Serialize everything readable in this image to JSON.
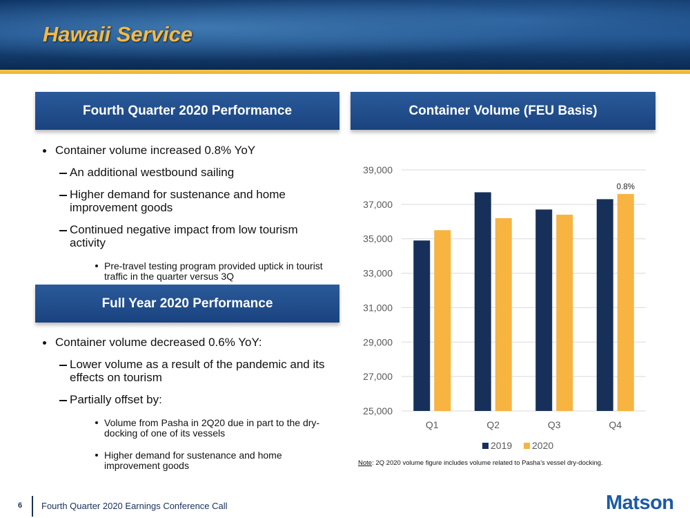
{
  "title": "Hawaii Service",
  "quarter_panel": {
    "heading": "Fourth Quarter 2020 Performance",
    "bullets": [
      {
        "text": "Container volume increased 0.8% YoY",
        "children": [
          {
            "text": "An additional westbound sailing"
          },
          {
            "text": "Higher demand for sustenance and home improvement goods"
          },
          {
            "text": "Continued negative impact from low tourism activity",
            "children": [
              {
                "text": "Pre-travel testing program provided uptick in tourist traffic in the quarter versus 3Q"
              }
            ]
          }
        ]
      }
    ]
  },
  "year_panel": {
    "heading": "Full Year 2020 Performance",
    "bullets": [
      {
        "text": "Container volume decreased 0.6% YoY:",
        "children": [
          {
            "text": "Lower volume as a result of the pandemic and its effects on tourism"
          },
          {
            "text": "Partially offset by:",
            "children": [
              {
                "text": "Volume from Pasha in 2Q20 due in part to the dry-docking of one of its vessels"
              },
              {
                "text": "Higher demand for sustenance and home improvement goods"
              }
            ]
          }
        ]
      }
    ]
  },
  "chart_heading": "Container Volume (FEU Basis)",
  "chart_data": {
    "type": "bar",
    "categories": [
      "Q1",
      "Q2",
      "Q3",
      "Q4"
    ],
    "series": [
      {
        "name": "2019",
        "color": "#17305a",
        "values": [
          34900,
          37700,
          36700,
          37300
        ]
      },
      {
        "name": "2020",
        "color": "#f7b441",
        "values": [
          35500,
          36200,
          36400,
          37600
        ]
      }
    ],
    "ylim": [
      25000,
      39000
    ],
    "yticks": [
      {
        "value": 25000,
        "label": "25,000"
      },
      {
        "value": 27000,
        "label": "27,000"
      },
      {
        "value": 29000,
        "label": "29,000"
      },
      {
        "value": 31000,
        "label": "31,000"
      },
      {
        "value": 33000,
        "label": "33,000"
      },
      {
        "value": 35000,
        "label": "35,000"
      },
      {
        "value": 37000,
        "label": "37,000"
      },
      {
        "value": 39000,
        "label": "39,000"
      }
    ],
    "grid": true,
    "legend": "bottom",
    "annotation": "0.8%"
  },
  "note_label": "Note",
  "note_text": ": 2Q 2020 volume figure includes volume related to Pasha’s vessel dry-docking.",
  "footer": {
    "page": "6",
    "text": "Fourth Quarter 2020 Earnings Conference Call",
    "logo": "Matson"
  }
}
